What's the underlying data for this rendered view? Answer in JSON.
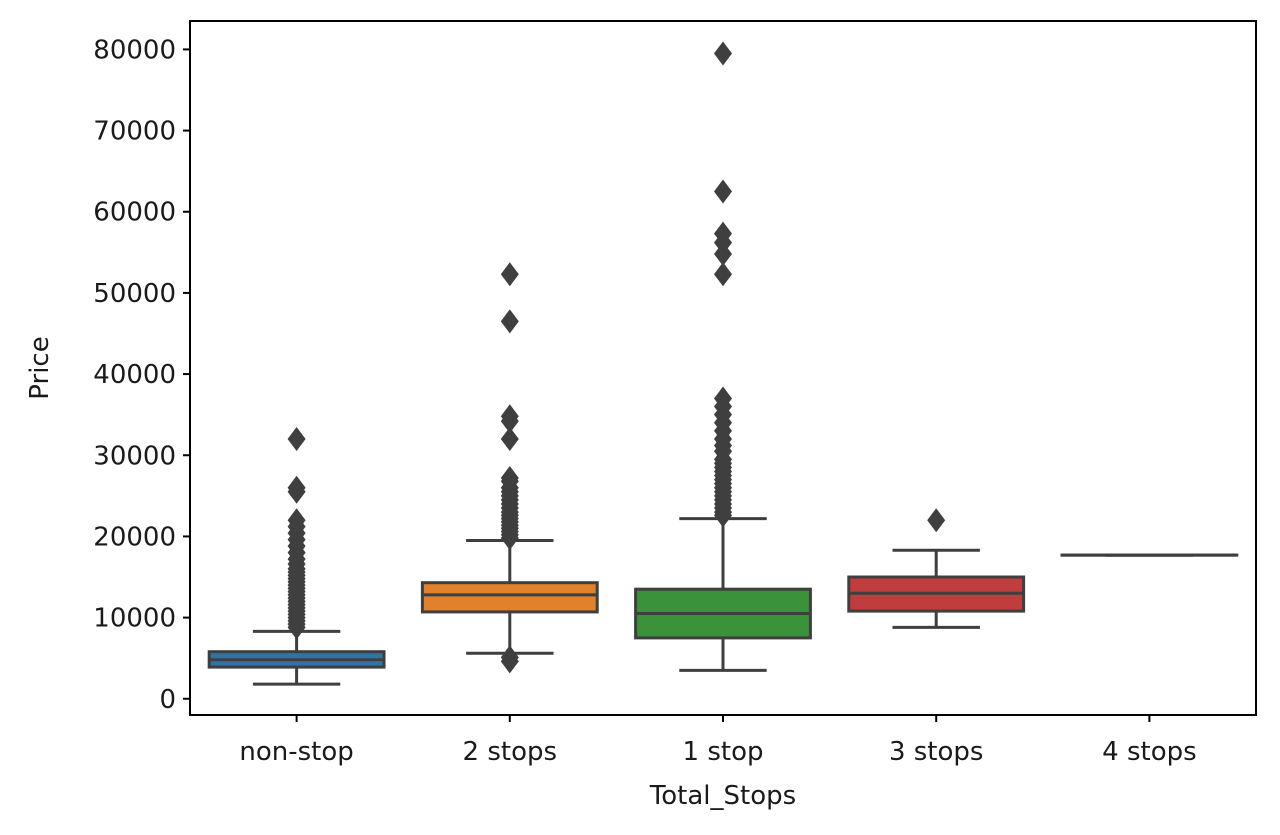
{
  "chart_data": {
    "type": "box",
    "xlabel": "Total_Stops",
    "ylabel": "Price",
    "ylim": [
      -2000,
      83500
    ],
    "yticks": [
      0,
      10000,
      20000,
      30000,
      40000,
      50000,
      60000,
      70000,
      80000
    ],
    "yticks_labels": [
      "0",
      "10000",
      "20000",
      "30000",
      "40000",
      "50000",
      "60000",
      "70000",
      "80000"
    ],
    "grid": false,
    "legend": "none",
    "categories": [
      "non-stop",
      "2 stops",
      "1 stop",
      "3 stops",
      "4 stops"
    ],
    "colors": [
      "#3274a1",
      "#e1812c",
      "#3a923a",
      "#c03d3e",
      "#9372b2"
    ],
    "edge_color": "#3f3f3f",
    "boxes": [
      {
        "label": "non-stop",
        "whisker_low": 1800,
        "q1": 3900,
        "median": 4800,
        "q3": 5800,
        "whisker_high": 8300,
        "outliers": [
          8800,
          9200,
          9600,
          10000,
          10400,
          10800,
          11200,
          11600,
          12000,
          12400,
          12800,
          13200,
          13600,
          14000,
          14400,
          14800,
          15200,
          15600,
          16000,
          16600,
          17200,
          18000,
          18800,
          19600,
          20400,
          21200,
          22000,
          25500,
          26000,
          32000
        ]
      },
      {
        "label": "2 stops",
        "whisker_low": 5600,
        "q1": 10700,
        "median": 12800,
        "q3": 14300,
        "whisker_high": 19500,
        "outliers": [
          4600,
          5100,
          19800,
          20200,
          20600,
          21000,
          21400,
          21800,
          22200,
          22600,
          23000,
          23500,
          24000,
          24500,
          25000,
          25500,
          26000,
          26800,
          27200,
          32000,
          34200,
          34800,
          46500,
          52300
        ]
      },
      {
        "label": "1 stop",
        "whisker_low": 3500,
        "q1": 7500,
        "median": 10500,
        "q3": 13500,
        "whisker_high": 22200,
        "outliers": [
          22600,
          23000,
          23500,
          24000,
          24500,
          25000,
          25500,
          26000,
          26500,
          27000,
          27500,
          28000,
          28500,
          29000,
          29500,
          30500,
          31200,
          32000,
          33000,
          34000,
          35000,
          36000,
          37000,
          52300,
          54800,
          56200,
          57300,
          62500,
          79500
        ]
      },
      {
        "label": "3 stops",
        "whisker_low": 8800,
        "q1": 10800,
        "median": 13000,
        "q3": 15000,
        "whisker_high": 18300,
        "outliers": [
          22000
        ]
      },
      {
        "label": "4 stops",
        "whisker_low": 17700,
        "q1": 17700,
        "median": 17700,
        "q3": 17700,
        "whisker_high": 17700,
        "outliers": []
      }
    ]
  }
}
